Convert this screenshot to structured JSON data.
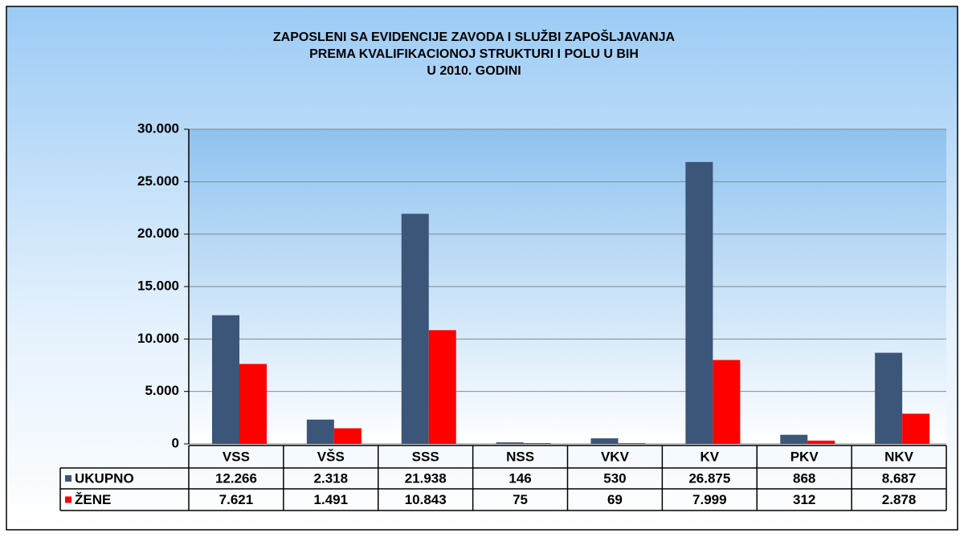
{
  "chart_data": {
    "type": "bar",
    "title": [
      "ZAPOSLENI SA EVIDENCIJE ZAVODA I SLUŽBI ZAPOŠLJAVANJA",
      "PREMA KVALIFIKACIONOJ STRUKTURI I POLU U BIH",
      "U 2010. GODINI"
    ],
    "categories": [
      "VSS",
      "VŠS",
      "SSS",
      "NSS",
      "VKV",
      "KV",
      "PKV",
      "NKV"
    ],
    "series": [
      {
        "name": "UKUPNO",
        "color": "#3b5678",
        "values": [
          12266,
          2318,
          21938,
          146,
          530,
          26875,
          868,
          8687
        ],
        "value_labels": [
          "12.266",
          "2.318",
          "21.938",
          "146",
          "530",
          "26.875",
          "868",
          "8.687"
        ]
      },
      {
        "name": "ŽENE",
        "color": "#ff0000",
        "values": [
          7621,
          1491,
          10843,
          75,
          69,
          7999,
          312,
          2878
        ],
        "value_labels": [
          "7.621",
          "1.491",
          "10.843",
          "75",
          "69",
          "7.999",
          "312",
          "2.878"
        ]
      }
    ],
    "ylim": [
      0,
      30000
    ],
    "yticks": [
      0,
      {
        "value": 5000,
        "label": "5.000"
      },
      {
        "value": 10000,
        "label": "10.000"
      },
      {
        "value": 15000,
        "label": "15.000"
      },
      {
        "value": 20000,
        "label": "20.000"
      },
      {
        "value": 25000,
        "label": "25.000"
      },
      {
        "value": 30000,
        "label": "30.000"
      }
    ],
    "grid": true
  }
}
